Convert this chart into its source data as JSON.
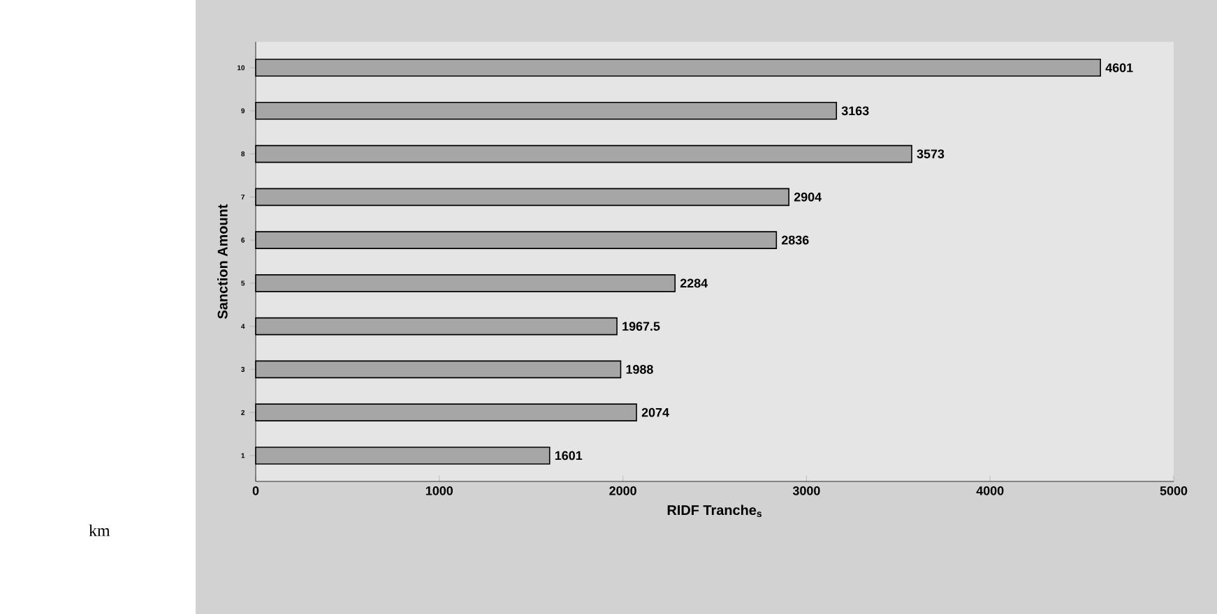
{
  "chart_data": {
    "type": "bar",
    "orientation": "horizontal",
    "categories": [
      "10",
      "9",
      "8",
      "7",
      "6",
      "5",
      "4",
      "3",
      "2",
      "1"
    ],
    "values": [
      4601,
      3163,
      3573,
      2904,
      2836,
      2284,
      1967.5,
      1988,
      2074,
      1601
    ],
    "color": "#a6a6a6",
    "xlim": [
      0,
      5000
    ],
    "xticks": [
      0,
      1000,
      2000,
      3000,
      4000,
      5000
    ],
    "xlabel": "RIDF Tranche$_{s}$",
    "ylabel": "Sanction Amount",
    "annotations": [
      "km"
    ],
    "data_labels": true
  }
}
